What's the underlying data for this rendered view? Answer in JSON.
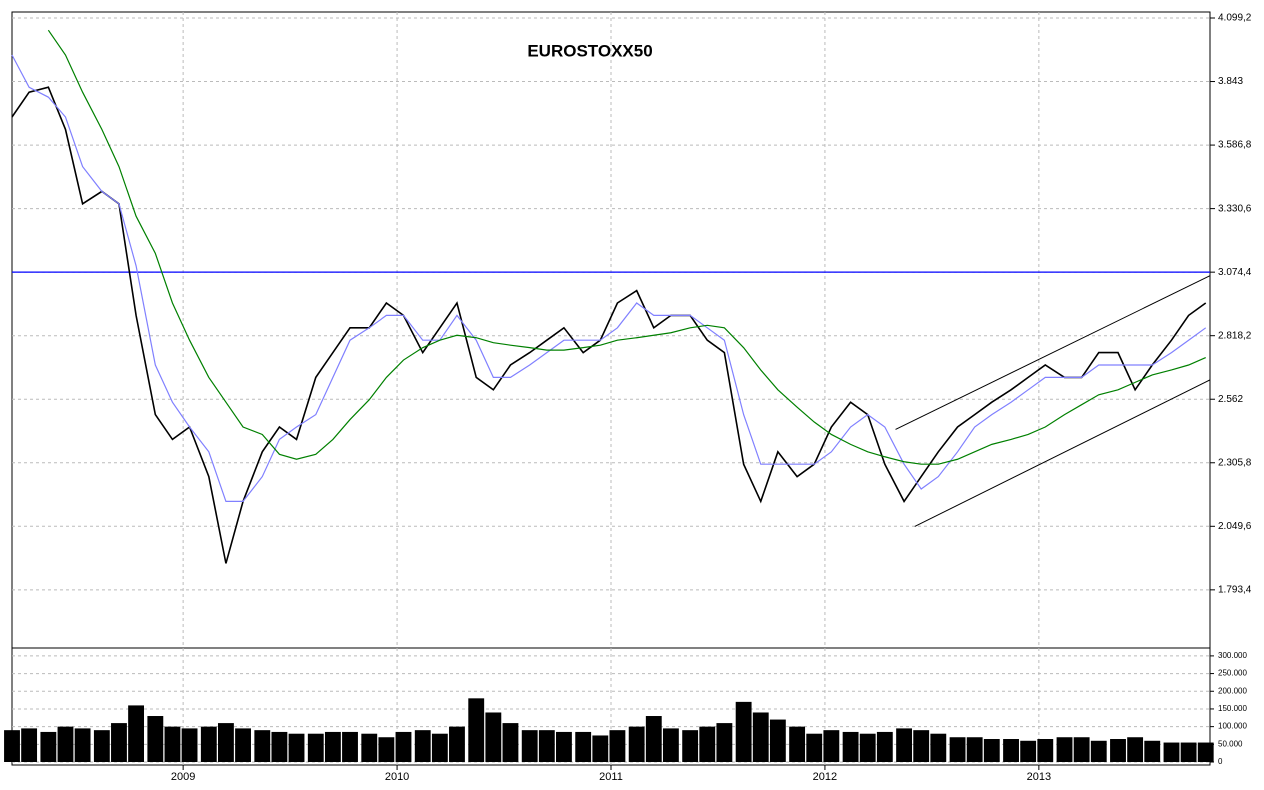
{
  "chart_data": {
    "type": "line",
    "title": "EUROSTOXX50",
    "x": [
      2008.2,
      2008.28,
      2008.37,
      2008.45,
      2008.53,
      2008.62,
      2008.7,
      2008.78,
      2008.87,
      2008.95,
      2009.03,
      2009.12,
      2009.2,
      2009.28,
      2009.37,
      2009.45,
      2009.53,
      2009.62,
      2009.7,
      2009.78,
      2009.87,
      2009.95,
      2010.03,
      2010.12,
      2010.2,
      2010.28,
      2010.37,
      2010.45,
      2010.53,
      2010.62,
      2010.7,
      2010.78,
      2010.87,
      2010.95,
      2011.03,
      2011.12,
      2011.2,
      2011.28,
      2011.37,
      2011.45,
      2011.53,
      2011.62,
      2011.7,
      2011.78,
      2011.87,
      2011.95,
      2012.03,
      2012.12,
      2012.2,
      2012.28,
      2012.37,
      2012.45,
      2012.53,
      2012.62,
      2012.7,
      2012.78,
      2012.87,
      2012.95,
      2013.03,
      2013.12,
      2013.2,
      2013.28,
      2013.37,
      2013.45,
      2013.53,
      2013.62,
      2013.7,
      2013.78
    ],
    "series": [
      {
        "color": "#000000",
        "values": [
          3700,
          3800,
          3820,
          3650,
          3350,
          3400,
          3350,
          2900,
          2500,
          2400,
          2450,
          2250,
          1900,
          2150,
          2350,
          2450,
          2400,
          2650,
          2750,
          2850,
          2850,
          2950,
          2900,
          2750,
          2850,
          2950,
          2650,
          2600,
          2700,
          2750,
          2800,
          2850,
          2750,
          2800,
          2950,
          3000,
          2850,
          2900,
          2900,
          2800,
          2750,
          2300,
          2150,
          2350,
          2250,
          2300,
          2450,
          2550,
          2500,
          2300,
          2150,
          2250,
          2350,
          2450,
          2500,
          2550,
          2600,
          2650,
          2700,
          2650,
          2650,
          2750,
          2750,
          2600,
          2700,
          2800,
          2900,
          2950
        ]
      },
      {
        "color": "#8080ff",
        "values": [
          3950,
          3820,
          3780,
          3700,
          3500,
          3400,
          3350,
          3100,
          2700,
          2550,
          2450,
          2350,
          2150,
          2150,
          2250,
          2400,
          2450,
          2500,
          2650,
          2800,
          2850,
          2900,
          2900,
          2800,
          2800,
          2900,
          2800,
          2650,
          2650,
          2700,
          2750,
          2800,
          2800,
          2800,
          2850,
          2950,
          2900,
          2900,
          2900,
          2850,
          2800,
          2500,
          2300,
          2300,
          2300,
          2300,
          2350,
          2450,
          2500,
          2450,
          2300,
          2200,
          2250,
          2350,
          2450,
          2500,
          2550,
          2600,
          2650,
          2650,
          2650,
          2700,
          2700,
          2700,
          2700,
          2750,
          2800,
          2850
        ]
      },
      {
        "color": "#008000",
        "values": [
          null,
          null,
          4050,
          3950,
          3800,
          3650,
          3500,
          3300,
          3150,
          2950,
          2800,
          2650,
          2550,
          2450,
          2420,
          2340,
          2320,
          2340,
          2400,
          2480,
          2560,
          2650,
          2720,
          2770,
          2800,
          2820,
          2810,
          2790,
          2780,
          2770,
          2760,
          2760,
          2770,
          2780,
          2800,
          2810,
          2820,
          2830,
          2850,
          2860,
          2850,
          2770,
          2680,
          2600,
          2530,
          2470,
          2420,
          2380,
          2350,
          2330,
          2310,
          2300,
          2300,
          2320,
          2350,
          2380,
          2400,
          2420,
          2450,
          2500,
          2540,
          2580,
          2600,
          2630,
          2660,
          2680,
          2700,
          2730
        ]
      },
      {
        "color": "#000000",
        "type": "bar",
        "axis": "y2",
        "values": [
          90000,
          95000,
          85000,
          100000,
          95000,
          90000,
          110000,
          160000,
          130000,
          100000,
          95000,
          100000,
          110000,
          95000,
          90000,
          85000,
          80000,
          80000,
          85000,
          85000,
          80000,
          70000,
          85000,
          90000,
          80000,
          100000,
          180000,
          140000,
          110000,
          90000,
          90000,
          85000,
          85000,
          75000,
          90000,
          100000,
          130000,
          95000,
          90000,
          100000,
          110000,
          170000,
          140000,
          120000,
          100000,
          80000,
          90000,
          85000,
          80000,
          85000,
          95000,
          90000,
          80000,
          70000,
          70000,
          65000,
          65000,
          60000,
          65000,
          70000,
          70000,
          60000,
          65000,
          70000,
          60000,
          55000,
          55000,
          55000
        ]
      }
    ],
    "hline": {
      "y": 3074.4,
      "color": "#0000ff"
    },
    "trend_lines": [
      {
        "x": [
          2012.33,
          2013.8
        ],
        "y": [
          2440,
          3060
        ]
      },
      {
        "x": [
          2012.42,
          2013.8
        ],
        "y": [
          2049,
          2640
        ]
      }
    ],
    "xlim": [
      2008.2,
      2013.8
    ],
    "xticks": [
      2009,
      2010,
      2011,
      2012,
      2013
    ],
    "ylim": [
      1571,
      4099.2
    ],
    "yticks": [
      {
        "value": 1793.4,
        "label": "1.793,4"
      },
      {
        "value": 2049.6,
        "label": "2.049,6"
      },
      {
        "value": 2305.8,
        "label": "2.305,8"
      },
      {
        "value": 2562,
        "label": "2.562"
      },
      {
        "value": 2818.2,
        "label": "2.818,2"
      },
      {
        "value": 3074.4,
        "label": "3.074,4"
      },
      {
        "value": 3330.6,
        "label": "3.330,6"
      },
      {
        "value": 3586.8,
        "label": "3.586,8"
      },
      {
        "value": 3843,
        "label": "3.843"
      },
      {
        "value": 4099.2,
        "label": "4.099,2"
      }
    ],
    "y2lim": [
      0,
      311000
    ],
    "y2ticks": [
      0,
      {
        "value": 50000,
        "label": "50.000"
      },
      {
        "value": 100000,
        "label": "100.000"
      },
      {
        "value": 150000,
        "label": "150.000"
      },
      {
        "value": 200000,
        "label": "200.000"
      },
      {
        "value": 250000,
        "label": "250.000"
      },
      {
        "value": 300000,
        "label": "300.000"
      }
    ],
    "grid": true
  }
}
